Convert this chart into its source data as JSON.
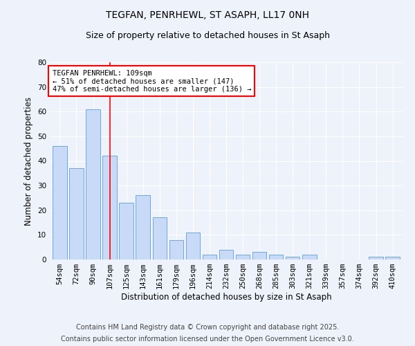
{
  "title": "TEGFAN, PENRHEWL, ST ASAPH, LL17 0NH",
  "subtitle": "Size of property relative to detached houses in St Asaph",
  "xlabel": "Distribution of detached houses by size in St Asaph",
  "ylabel": "Number of detached properties",
  "categories": [
    "54sqm",
    "72sqm",
    "90sqm",
    "107sqm",
    "125sqm",
    "143sqm",
    "161sqm",
    "179sqm",
    "196sqm",
    "214sqm",
    "232sqm",
    "250sqm",
    "268sqm",
    "285sqm",
    "303sqm",
    "321sqm",
    "339sqm",
    "357sqm",
    "374sqm",
    "392sqm",
    "410sqm"
  ],
  "values": [
    46,
    37,
    61,
    42,
    23,
    26,
    17,
    8,
    11,
    2,
    4,
    2,
    3,
    2,
    1,
    2,
    0,
    0,
    0,
    1,
    1
  ],
  "bar_color": "#c9daf8",
  "bar_edge_color": "#6fa8dc",
  "redline_index": 3,
  "annotation_title": "TEGFAN PENRHEWL: 109sqm",
  "annotation_line1": "← 51% of detached houses are smaller (147)",
  "annotation_line2": "47% of semi-detached houses are larger (136) →",
  "annotation_box_color": "white",
  "annotation_box_edge": "red",
  "ylim": [
    0,
    80
  ],
  "yticks": [
    0,
    10,
    20,
    30,
    40,
    50,
    60,
    70,
    80
  ],
  "footnote1": "Contains HM Land Registry data © Crown copyright and database right 2025.",
  "footnote2": "Contains public sector information licensed under the Open Government Licence v3.0.",
  "title_fontsize": 10,
  "subtitle_fontsize": 9,
  "tick_fontsize": 7.5,
  "label_fontsize": 8.5,
  "annotation_fontsize": 7.5,
  "footnote_fontsize": 7,
  "background_color": "#eef2fb"
}
